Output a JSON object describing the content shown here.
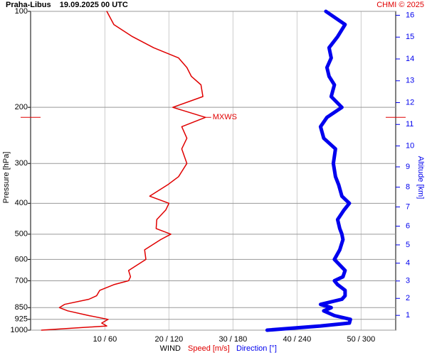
{
  "chart_data": {
    "type": "line",
    "title": "Praha-Libus    19.09.2025 00 UTC",
    "credit": "CHMI © 2025",
    "ylabel": "Pressure [hPa]",
    "y2label": "Altitude [km]",
    "xlabel": "WIND",
    "ylog": true,
    "grid": true,
    "ylim": [
      1000,
      100
    ],
    "yticks": [
      100,
      200,
      300,
      400,
      500,
      600,
      700,
      850,
      925,
      1000
    ],
    "xlim": [
      -1.6,
      55.4
    ],
    "x2lim": [
      -9.6,
      332.4
    ],
    "xticks": [
      {
        "value": 10,
        "label": "10 / 60"
      },
      {
        "value": 20,
        "label": "20 / 120"
      },
      {
        "value": 30,
        "label": "30 / 180"
      },
      {
        "value": 40,
        "label": "40 / 240"
      },
      {
        "value": 50,
        "label": "50 / 300"
      }
    ],
    "y2ticks": [
      1,
      2,
      3,
      4,
      5,
      6,
      7,
      8,
      9,
      10,
      11,
      12,
      13,
      14,
      15,
      16
    ],
    "pressure": [
      1000,
      970,
      950,
      925,
      900,
      870,
      850,
      830,
      800,
      780,
      750,
      720,
      700,
      680,
      650,
      600,
      560,
      520,
      500,
      480,
      450,
      420,
      400,
      380,
      350,
      330,
      300,
      270,
      250,
      230,
      215,
      200,
      185,
      170,
      160,
      150,
      140,
      130,
      120,
      110,
      100
    ],
    "series": [
      {
        "name": "Speed [m/s]",
        "color": "#e00000",
        "values": [
          0.1,
          10.3,
          9.5,
          10.5,
          7.5,
          4.2,
          2.9,
          3.7,
          7.5,
          8.7,
          9.2,
          11.4,
          13.7,
          14,
          13.7,
          16.4,
          16.2,
          18.7,
          20.3,
          18,
          18.1,
          19.5,
          20,
          17,
          19.8,
          21.5,
          22.8,
          22,
          22.8,
          22,
          25.7,
          20.6,
          25.3,
          25,
          23.5,
          22.8,
          21.5,
          17.6,
          14.3,
          11.4,
          10.3
        ]
      },
      {
        "name": "Direction [°]",
        "color": "#0000ee",
        "axis": "x2",
        "values": [
          212,
          262,
          289,
          290,
          275,
          265,
          272,
          262,
          282,
          285,
          285,
          278,
          275,
          283,
          285,
          275,
          280,
          283,
          282,
          280,
          278,
          284,
          289,
          282,
          279,
          276,
          274,
          276,
          265,
          262,
          268,
          282,
          272,
          275,
          270,
          268,
          272,
          270,
          278,
          285,
          267
        ]
      }
    ],
    "annotation": {
      "text": "MXWS",
      "pressure": 215
    }
  }
}
